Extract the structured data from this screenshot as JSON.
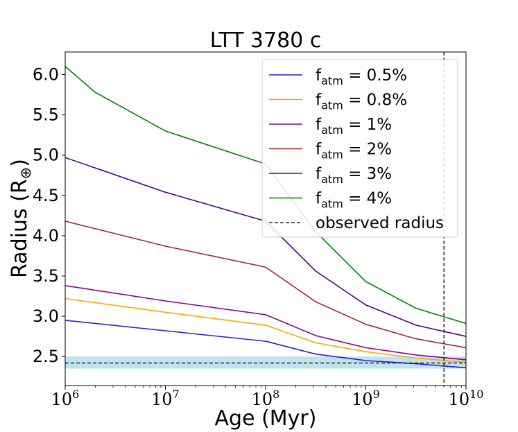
{
  "chart_data": {
    "type": "line",
    "title": "LTT 3780 c",
    "xlabel": "Age (Myr)",
    "ylabel": "Radius (R",
    "ylabel_symbol": "⊕",
    "ylabel_close": ")",
    "xscale": "log",
    "xlim_exp": [
      6,
      10
    ],
    "ylim": [
      2.14,
      6.28
    ],
    "xticks": [
      {
        "exp": 6,
        "base": "10",
        "sup": "6"
      },
      {
        "exp": 7,
        "base": "10",
        "sup": "7"
      },
      {
        "exp": 8,
        "base": "10",
        "sup": "8"
      },
      {
        "exp": 9,
        "base": "10",
        "sup": "9"
      },
      {
        "exp": 10,
        "base": "10",
        "sup": "10"
      }
    ],
    "yticks": [
      {
        "value": 2.5,
        "label": "2.5"
      },
      {
        "value": 3.0,
        "label": "3.0"
      },
      {
        "value": 3.5,
        "label": "3.5"
      },
      {
        "value": 4.0,
        "label": "4.0"
      },
      {
        "value": 4.5,
        "label": "4.5"
      },
      {
        "value": 5.0,
        "label": "5.0"
      },
      {
        "value": 5.5,
        "label": "5.5"
      },
      {
        "value": 6.0,
        "label": "6.0"
      }
    ],
    "legend_position": "top-right",
    "series": [
      {
        "name": "f_atm = 0.5%",
        "label_base": "f",
        "label_sub": "atm",
        "label_rest": " = 0.5%",
        "color": "#1f1fdd",
        "points": [
          [
            6,
            2.95
          ],
          [
            7,
            2.82
          ],
          [
            8,
            2.69
          ],
          [
            8.5,
            2.53
          ],
          [
            9,
            2.45
          ],
          [
            9.5,
            2.41
          ],
          [
            10,
            2.36
          ]
        ]
      },
      {
        "name": "f_atm = 0.8%",
        "label_base": "f",
        "label_sub": "atm",
        "label_rest": " = 0.8%",
        "color": "#ffa500",
        "points": [
          [
            6,
            3.22
          ],
          [
            7,
            3.05
          ],
          [
            8,
            2.89
          ],
          [
            8.5,
            2.67
          ],
          [
            9,
            2.56
          ],
          [
            9.5,
            2.48
          ],
          [
            10,
            2.43
          ]
        ]
      },
      {
        "name": "f_atm = 1%",
        "label_base": "f",
        "label_sub": "atm",
        "label_rest": " = 1%",
        "color": "#8b008b",
        "points": [
          [
            6,
            3.38
          ],
          [
            7,
            3.19
          ],
          [
            8,
            3.02
          ],
          [
            8.5,
            2.76
          ],
          [
            9,
            2.61
          ],
          [
            9.5,
            2.52
          ],
          [
            10,
            2.46
          ]
        ]
      },
      {
        "name": "f_atm = 2%",
        "label_base": "f",
        "label_sub": "atm",
        "label_rest": " = 2%",
        "color": "#a52a2a",
        "points": [
          [
            6,
            4.18
          ],
          [
            7,
            3.87
          ],
          [
            8,
            3.61
          ],
          [
            8.5,
            3.18
          ],
          [
            9,
            2.9
          ],
          [
            9.5,
            2.72
          ],
          [
            10,
            2.61
          ]
        ]
      },
      {
        "name": "f_atm = 3%",
        "label_base": "f",
        "label_sub": "atm",
        "label_rest": " = 3%",
        "color": "#4b0082",
        "points": [
          [
            6,
            4.97
          ],
          [
            7,
            4.54
          ],
          [
            8,
            4.18
          ],
          [
            8.5,
            3.56
          ],
          [
            9,
            3.14
          ],
          [
            9.5,
            2.89
          ],
          [
            10,
            2.75
          ]
        ]
      },
      {
        "name": "f_atm = 4%",
        "label_base": "f",
        "label_sub": "atm",
        "label_rest": " = 4%",
        "color": "#008000",
        "points": [
          [
            6,
            6.1
          ],
          [
            6.3,
            5.78
          ],
          [
            7,
            5.3
          ],
          [
            8,
            4.89
          ],
          [
            8.5,
            4.05
          ],
          [
            9,
            3.43
          ],
          [
            9.5,
            3.1
          ],
          [
            10,
            2.91
          ]
        ]
      }
    ],
    "observed_radius": {
      "name": "observed radius",
      "value": 2.42,
      "band": [
        2.35,
        2.5
      ],
      "band_color": "#add8e6",
      "color": "#000000"
    },
    "age_marker": {
      "x_exp": 9.78,
      "color": "#000000"
    }
  }
}
